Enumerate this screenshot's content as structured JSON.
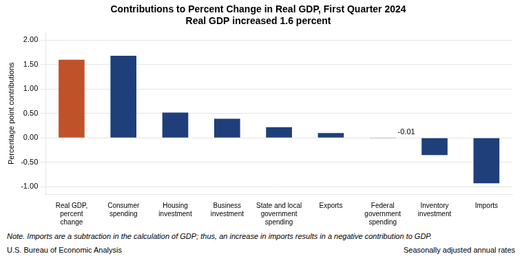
{
  "chart_data": {
    "type": "bar",
    "title": "Contributions to Percent Change in Real GDP, First Quarter 2024",
    "subtitle": "Real GDP increased 1.6 percent",
    "categories": [
      "Real GDP,\npercent\nchange",
      "Consumer\nspending",
      "Housing\ninvestment",
      "Business\ninvestment",
      "State and local\ngovernment\nspending",
      "Exports",
      "Federal\ngovernment\nspending",
      "Inventory\ninvestment",
      "Imports"
    ],
    "values": [
      1.6,
      1.68,
      0.52,
      0.39,
      0.22,
      0.1,
      -0.01,
      -0.35,
      -0.93
    ],
    "colors": [
      "#C0522A",
      "#1F3F7A",
      "#1F3F7A",
      "#1F3F7A",
      "#1F3F7A",
      "#1F3F7A",
      "#1F3F7A",
      "#1F3F7A",
      "#1F3F7A"
    ],
    "ylabel": "Percentage point contributions",
    "ylim": [
      -1.15,
      2.15
    ],
    "yticks": [
      {
        "value": -1.0,
        "label": "-1.00"
      },
      {
        "value": -0.5,
        "label": "-0.50"
      },
      {
        "value": 0.0,
        "label": "0.00"
      },
      {
        "value": 0.5,
        "label": "0.50"
      },
      {
        "value": 1.0,
        "label": "1.00"
      },
      {
        "value": 1.5,
        "label": "1.50"
      },
      {
        "value": 2.0,
        "label": "2.00"
      }
    ],
    "grid": true,
    "annotations": [
      {
        "text": "-0.01",
        "category": "Federal\ngovernment\nspending"
      }
    ],
    "note": "Note. Imports are a subtraction in the calculation of GDP; thus, an increase in imports results in a negative contribution to GDP.",
    "source": "U.S. Bureau of Economic Analysis",
    "seasonality": "Seasonally adjusted annual rates"
  }
}
